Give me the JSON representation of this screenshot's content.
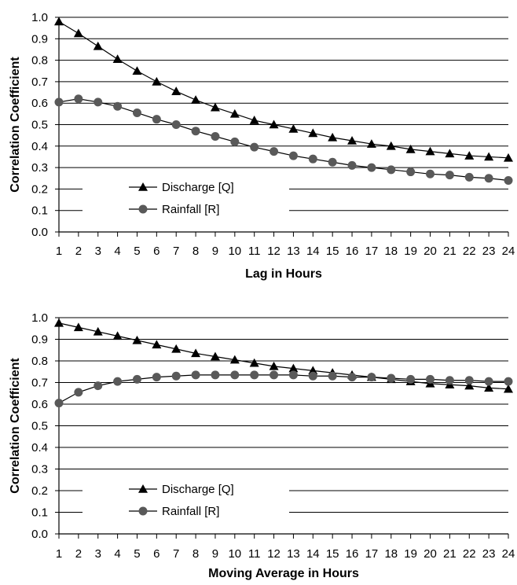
{
  "chart_data": [
    {
      "type": "line",
      "title": "",
      "xlabel": "Lag in Hours",
      "ylabel": "Correlation Coefficient",
      "categories": [
        1,
        2,
        3,
        4,
        5,
        6,
        7,
        8,
        9,
        10,
        11,
        12,
        13,
        14,
        15,
        16,
        17,
        18,
        19,
        20,
        21,
        22,
        23,
        24
      ],
      "x_tick_labels": [
        "1",
        "2",
        "3",
        "4",
        "5",
        "6",
        "7",
        "8",
        "9",
        "10",
        "11",
        "12",
        "13",
        "14",
        "15",
        "16",
        "17",
        "18",
        "19",
        "20",
        "21",
        "22",
        "23",
        "24"
      ],
      "ylim": [
        0,
        1.0
      ],
      "y_tick_labels": [
        "0.0",
        "0.1",
        "0.2",
        "0.3",
        "0.4",
        "0.5",
        "0.6",
        "0.7",
        "0.8",
        "0.9",
        "1.0"
      ],
      "grid": "horizontal",
      "legend_position": "lower-left",
      "series": [
        {
          "name": "Discharge [Q]",
          "marker": "triangle",
          "values": [
            0.98,
            0.925,
            0.865,
            0.805,
            0.75,
            0.7,
            0.655,
            0.615,
            0.58,
            0.55,
            0.52,
            0.5,
            0.48,
            0.46,
            0.44,
            0.425,
            0.41,
            0.4,
            0.385,
            0.375,
            0.365,
            0.355,
            0.35,
            0.345
          ]
        },
        {
          "name": "Rainfall [R]",
          "marker": "circle",
          "values": [
            0.605,
            0.62,
            0.605,
            0.585,
            0.555,
            0.525,
            0.5,
            0.47,
            0.445,
            0.42,
            0.395,
            0.375,
            0.355,
            0.34,
            0.325,
            0.31,
            0.3,
            0.29,
            0.28,
            0.27,
            0.265,
            0.255,
            0.25,
            0.24
          ]
        }
      ]
    },
    {
      "type": "line",
      "title": "",
      "xlabel": "Moving Average in Hours",
      "ylabel": "Correlation Coefficient",
      "categories": [
        1,
        2,
        3,
        4,
        5,
        6,
        7,
        8,
        9,
        10,
        11,
        12,
        13,
        14,
        15,
        16,
        17,
        18,
        19,
        20,
        21,
        22,
        23,
        24
      ],
      "x_tick_labels": [
        "1",
        "2",
        "3",
        "4",
        "5",
        "6",
        "7",
        "8",
        "9",
        "10",
        "11",
        "12",
        "13",
        "14",
        "15",
        "16",
        "17",
        "18",
        "19",
        "20",
        "21",
        "22",
        "23",
        "24"
      ],
      "ylim": [
        0,
        1.0
      ],
      "y_tick_labels": [
        "0.0",
        "0.1",
        "0.2",
        "0.3",
        "0.4",
        "0.5",
        "0.6",
        "0.7",
        "0.8",
        "0.9",
        "1.0"
      ],
      "grid": "horizontal",
      "legend_position": "lower-left",
      "series": [
        {
          "name": "Discharge [Q]",
          "marker": "triangle",
          "values": [
            0.975,
            0.955,
            0.935,
            0.915,
            0.895,
            0.875,
            0.855,
            0.835,
            0.82,
            0.805,
            0.79,
            0.775,
            0.765,
            0.755,
            0.745,
            0.735,
            0.725,
            0.715,
            0.705,
            0.695,
            0.69,
            0.685,
            0.675,
            0.67
          ]
        },
        {
          "name": "Rainfall [R]",
          "marker": "circle",
          "values": [
            0.605,
            0.655,
            0.685,
            0.705,
            0.715,
            0.725,
            0.73,
            0.735,
            0.735,
            0.735,
            0.735,
            0.735,
            0.735,
            0.73,
            0.73,
            0.725,
            0.725,
            0.72,
            0.715,
            0.715,
            0.71,
            0.71,
            0.705,
            0.705
          ]
        }
      ]
    }
  ],
  "colors": {
    "discharge": "#000000",
    "rainfall": "#595959",
    "grid": "#000000"
  }
}
